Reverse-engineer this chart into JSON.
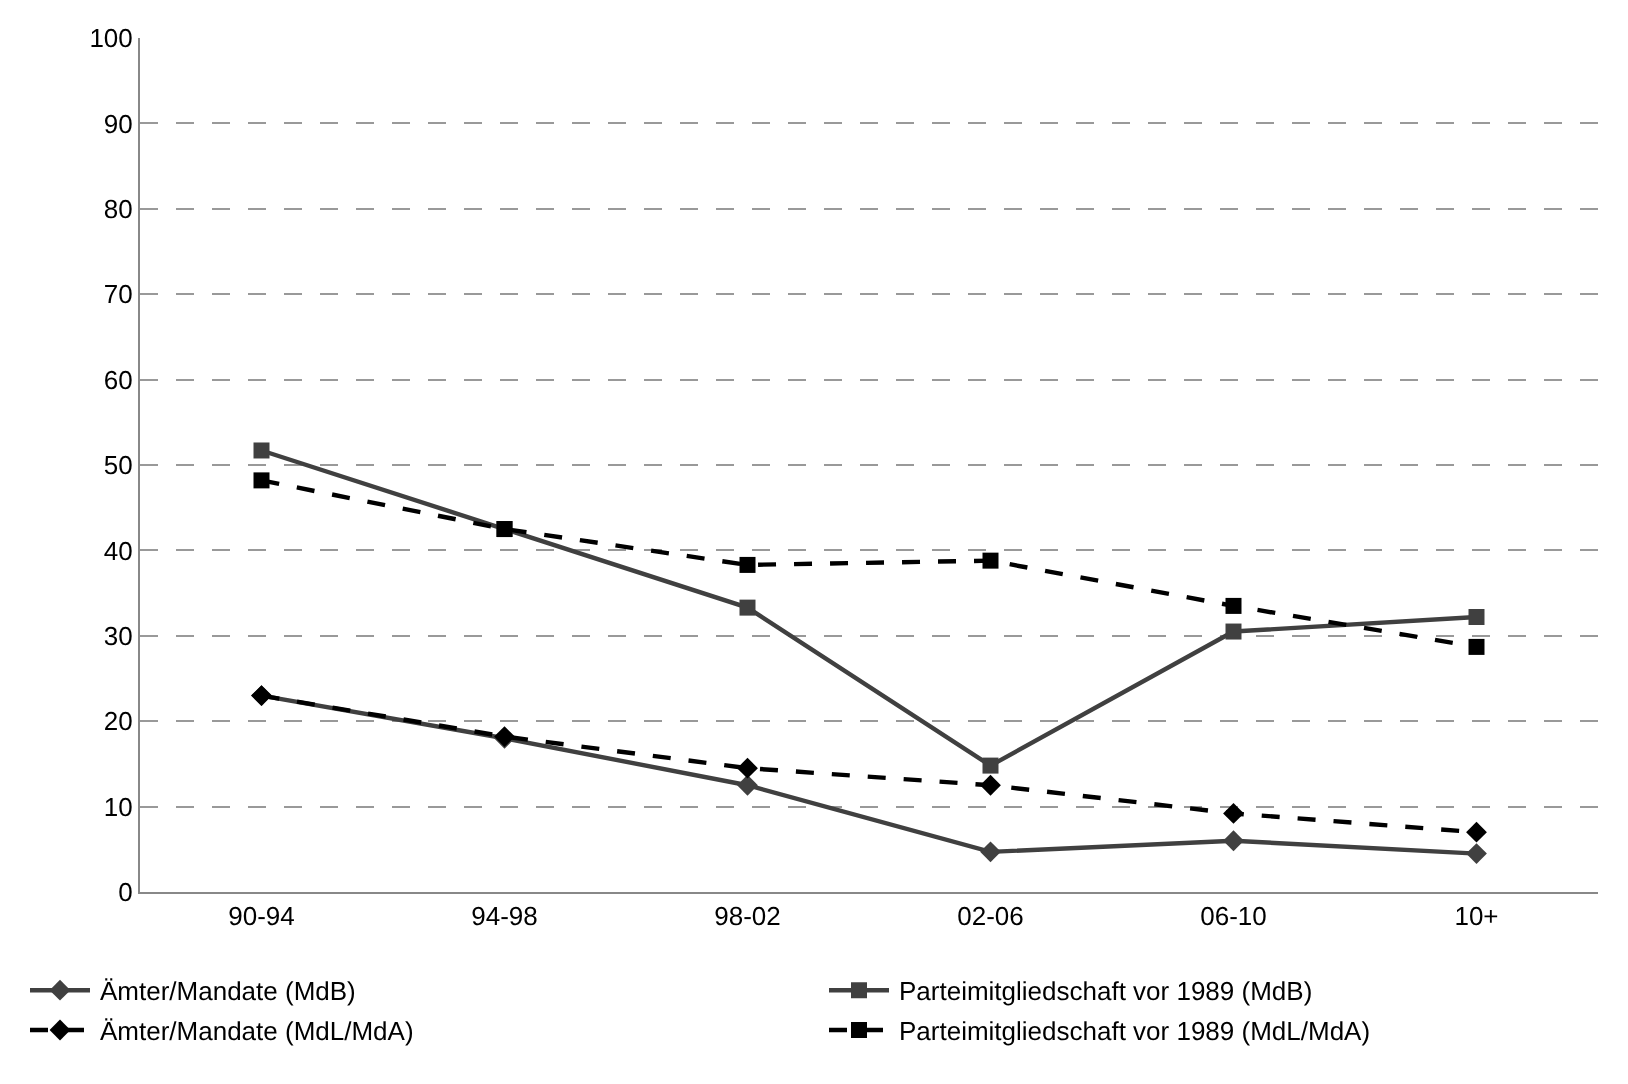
{
  "chart_data": {
    "type": "line",
    "categories": [
      "90-94",
      "94-98",
      "98-02",
      "02-06",
      "06-10",
      "10+"
    ],
    "ylim": [
      0,
      100
    ],
    "yticks": [
      0,
      10,
      20,
      30,
      40,
      50,
      60,
      70,
      80,
      90,
      100
    ],
    "grid": "y",
    "legend": "bottom",
    "series": [
      {
        "name": "Ämter/Mandate (MdB)",
        "color": "#404040",
        "marker": "diamond",
        "line_style": "solid",
        "values": [
          23,
          18,
          12.5,
          4.7,
          6,
          4.5
        ]
      },
      {
        "name": "Parteimitgliedschaft vor 1989 (MdB)",
        "color": "#404040",
        "marker": "square",
        "line_style": "solid",
        "values": [
          51.7,
          42.5,
          33.3,
          14.8,
          30.5,
          32.2
        ]
      },
      {
        "name": "Ämter/Mandate (MdL/MdA)",
        "color": "#000000",
        "marker": "diamond",
        "line_style": "dashed",
        "values": [
          23,
          18.2,
          14.5,
          12.5,
          9.2,
          7
        ]
      },
      {
        "name": "Parteimitgliedschaft vor 1989 (MdL/MdA)",
        "color": "#000000",
        "marker": "square",
        "line_style": "dashed",
        "values": [
          48.2,
          42.5,
          38.3,
          38.8,
          33.5,
          28.7
        ]
      }
    ]
  }
}
